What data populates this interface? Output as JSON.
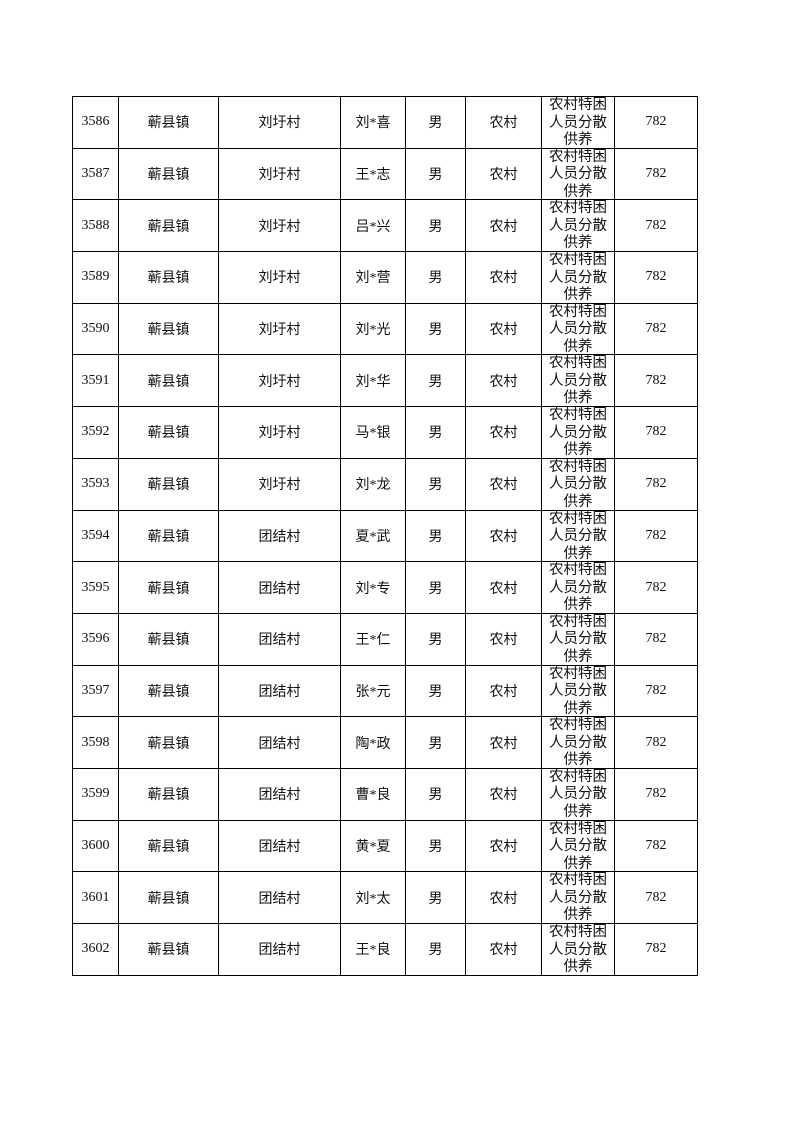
{
  "rows": [
    {
      "no": "3586",
      "town": "蕲县镇",
      "village": "刘圩村",
      "name": "刘*喜",
      "gender": "男",
      "area": "农村",
      "type": "农村特困人员分散供养",
      "amount": "782"
    },
    {
      "no": "3587",
      "town": "蕲县镇",
      "village": "刘圩村",
      "name": "王*志",
      "gender": "男",
      "area": "农村",
      "type": "农村特困人员分散供养",
      "amount": "782"
    },
    {
      "no": "3588",
      "town": "蕲县镇",
      "village": "刘圩村",
      "name": "吕*兴",
      "gender": "男",
      "area": "农村",
      "type": "农村特困人员分散供养",
      "amount": "782"
    },
    {
      "no": "3589",
      "town": "蕲县镇",
      "village": "刘圩村",
      "name": "刘*营",
      "gender": "男",
      "area": "农村",
      "type": "农村特困人员分散供养",
      "amount": "782"
    },
    {
      "no": "3590",
      "town": "蕲县镇",
      "village": "刘圩村",
      "name": "刘*光",
      "gender": "男",
      "area": "农村",
      "type": "农村特困人员分散供养",
      "amount": "782"
    },
    {
      "no": "3591",
      "town": "蕲县镇",
      "village": "刘圩村",
      "name": "刘*华",
      "gender": "男",
      "area": "农村",
      "type": "农村特困人员分散供养",
      "amount": "782"
    },
    {
      "no": "3592",
      "town": "蕲县镇",
      "village": "刘圩村",
      "name": "马*银",
      "gender": "男",
      "area": "农村",
      "type": "农村特困人员分散供养",
      "amount": "782"
    },
    {
      "no": "3593",
      "town": "蕲县镇",
      "village": "刘圩村",
      "name": "刘*龙",
      "gender": "男",
      "area": "农村",
      "type": "农村特困人员分散供养",
      "amount": "782"
    },
    {
      "no": "3594",
      "town": "蕲县镇",
      "village": "团结村",
      "name": "夏*武",
      "gender": "男",
      "area": "农村",
      "type": "农村特困人员分散供养",
      "amount": "782"
    },
    {
      "no": "3595",
      "town": "蕲县镇",
      "village": "团结村",
      "name": "刘*专",
      "gender": "男",
      "area": "农村",
      "type": "农村特困人员分散供养",
      "amount": "782"
    },
    {
      "no": "3596",
      "town": "蕲县镇",
      "village": "团结村",
      "name": "王*仁",
      "gender": "男",
      "area": "农村",
      "type": "农村特困人员分散供养",
      "amount": "782"
    },
    {
      "no": "3597",
      "town": "蕲县镇",
      "village": "团结村",
      "name": "张*元",
      "gender": "男",
      "area": "农村",
      "type": "农村特困人员分散供养",
      "amount": "782"
    },
    {
      "no": "3598",
      "town": "蕲县镇",
      "village": "团结村",
      "name": "陶*政",
      "gender": "男",
      "area": "农村",
      "type": "农村特困人员分散供养",
      "amount": "782"
    },
    {
      "no": "3599",
      "town": "蕲县镇",
      "village": "团结村",
      "name": "曹*良",
      "gender": "男",
      "area": "农村",
      "type": "农村特困人员分散供养",
      "amount": "782"
    },
    {
      "no": "3600",
      "town": "蕲县镇",
      "village": "团结村",
      "name": "黄*夏",
      "gender": "男",
      "area": "农村",
      "type": "农村特困人员分散供养",
      "amount": "782"
    },
    {
      "no": "3601",
      "town": "蕲县镇",
      "village": "团结村",
      "name": "刘*太",
      "gender": "男",
      "area": "农村",
      "type": "农村特困人员分散供养",
      "amount": "782"
    },
    {
      "no": "3602",
      "town": "蕲县镇",
      "village": "团结村",
      "name": "王*良",
      "gender": "男",
      "area": "农村",
      "type": "农村特困人员分散供养",
      "amount": "782"
    }
  ]
}
